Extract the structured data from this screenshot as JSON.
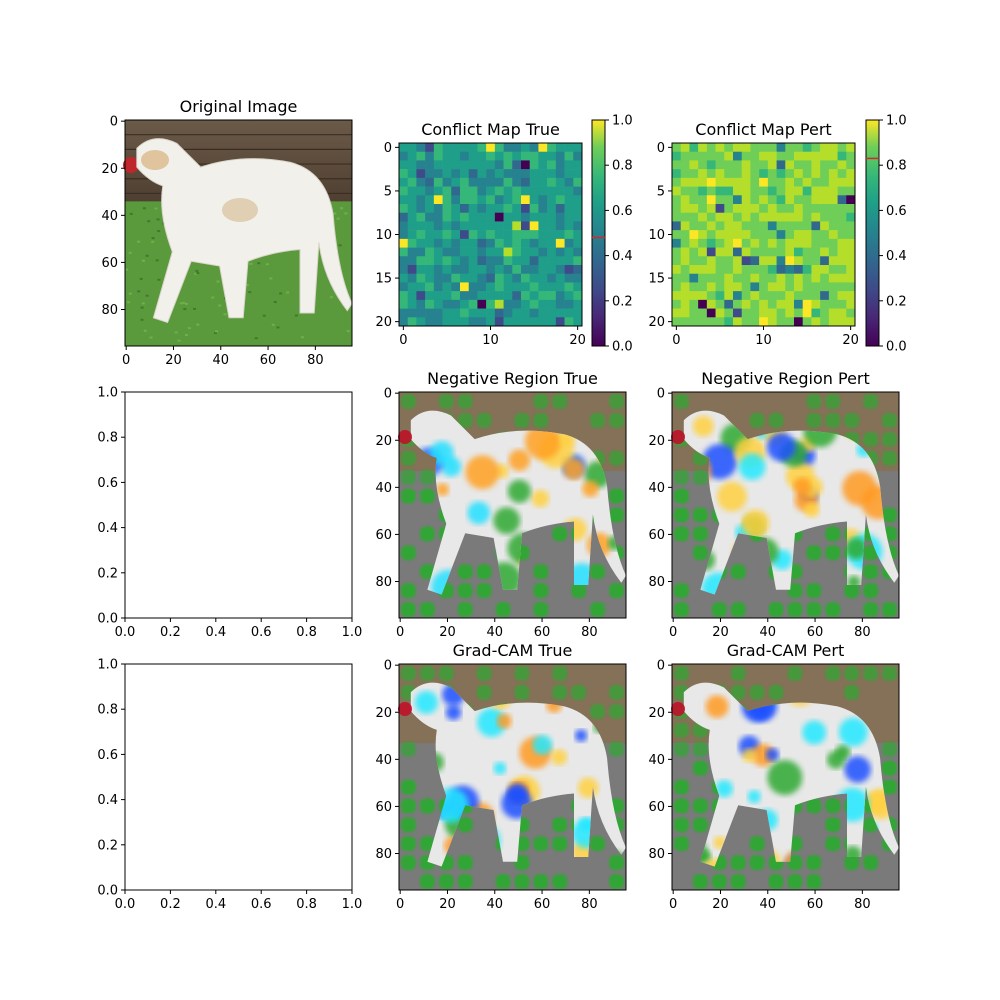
{
  "chart_data": [
    {
      "type": "image",
      "title": "Original Image",
      "x_ticks": [
        "0",
        "20",
        "40",
        "60",
        "80"
      ],
      "y_ticks": [
        "0",
        "20",
        "40",
        "60",
        "80"
      ],
      "xlim": [
        0,
        96
      ],
      "ylim": [
        96,
        0
      ],
      "content": "white dog on grass, wooden fence background"
    },
    {
      "type": "heatmap",
      "title": "Conflict Map True",
      "x_ticks": [
        "0",
        "10",
        "20"
      ],
      "y_ticks": [
        "0",
        "5",
        "10",
        "15",
        "20"
      ],
      "grid_size": 21,
      "colormap": "viridis",
      "colorbar_ticks": [
        "0.0",
        "0.2",
        "0.4",
        "0.6",
        "0.8",
        "1.0"
      ],
      "colorbar_range": [
        0,
        1
      ],
      "colorbar_marker": 0.48,
      "seed": 7,
      "base_value": 0.55
    },
    {
      "type": "heatmap",
      "title": "Conflict Map Pert",
      "x_ticks": [
        "0",
        "10",
        "20"
      ],
      "y_ticks": [
        "0",
        "5",
        "10",
        "15",
        "20"
      ],
      "grid_size": 21,
      "colormap": "viridis",
      "colorbar_ticks": [
        "0.0",
        "0.2",
        "0.4",
        "0.6",
        "0.8",
        "1.0"
      ],
      "colorbar_range": [
        0,
        1
      ],
      "colorbar_marker": 0.83,
      "seed": 13,
      "base_value": 0.78
    },
    {
      "type": "empty",
      "title": "",
      "x_ticks": [
        "0.0",
        "0.2",
        "0.4",
        "0.6",
        "0.8",
        "1.0"
      ],
      "y_ticks": [
        "0.0",
        "0.2",
        "0.4",
        "0.6",
        "0.8",
        "1.0"
      ],
      "xlim": [
        0,
        1
      ],
      "ylim": [
        0,
        1
      ]
    },
    {
      "type": "image",
      "title": "Negative Region True",
      "x_ticks": [
        "0",
        "20",
        "40",
        "60",
        "80"
      ],
      "y_ticks": [
        "0",
        "20",
        "40",
        "60",
        "80"
      ],
      "xlim": [
        0,
        96
      ],
      "ylim": [
        96,
        0
      ],
      "content": "dog overlay with jet-colored heat patches on green background"
    },
    {
      "type": "image",
      "title": "Negative Region Pert",
      "x_ticks": [
        "0",
        "20",
        "40",
        "60",
        "80"
      ],
      "y_ticks": [
        "0",
        "20",
        "40",
        "60",
        "80"
      ],
      "xlim": [
        0,
        96
      ],
      "ylim": [
        96,
        0
      ],
      "content": "dog overlay with cyan/orange heat regions"
    },
    {
      "type": "empty",
      "title": "",
      "x_ticks": [
        "0.0",
        "0.2",
        "0.4",
        "0.6",
        "0.8",
        "1.0"
      ],
      "y_ticks": [
        "0.0",
        "0.2",
        "0.4",
        "0.6",
        "0.8",
        "1.0"
      ],
      "xlim": [
        0,
        1
      ],
      "ylim": [
        0,
        1
      ]
    },
    {
      "type": "image",
      "title": "Grad-CAM True",
      "x_ticks": [
        "0",
        "20",
        "40",
        "60",
        "80"
      ],
      "y_ticks": [
        "0",
        "20",
        "40",
        "60",
        "80"
      ],
      "xlim": [
        0,
        96
      ],
      "ylim": [
        96,
        0
      ],
      "content": "dog overlay with Grad-CAM heat map"
    },
    {
      "type": "image",
      "title": "Grad-CAM Pert",
      "x_ticks": [
        "0",
        "20",
        "40",
        "60",
        "80"
      ],
      "y_ticks": [
        "0",
        "20",
        "40",
        "60",
        "80"
      ],
      "xlim": [
        0,
        96
      ],
      "ylim": [
        96,
        0
      ],
      "content": "dog overlay with Grad-CAM heat map"
    }
  ]
}
